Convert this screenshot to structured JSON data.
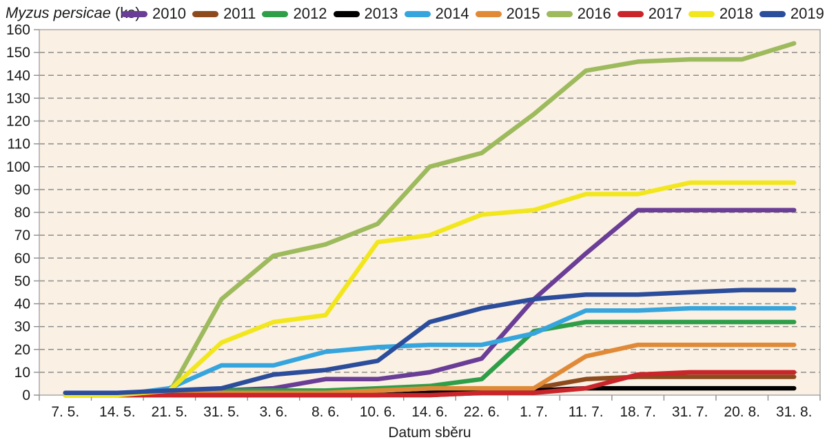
{
  "title": {
    "italic": "Myzus persicae",
    "suffix": " (ks)"
  },
  "chart_data": {
    "type": "line",
    "title": "Myzus persicae (ks)",
    "xlabel": "Datum sběru",
    "ylabel": "",
    "ylim": [
      0,
      160
    ],
    "ytick_step": 10,
    "grid": "horizontal-dashed",
    "legend_position": "top",
    "plot_bg_color": "#faf0e3",
    "grid_color": "#8c8c8c",
    "axis_color": "#a8a8a8",
    "categories": [
      "7. 5.",
      "14. 5.",
      "21. 5.",
      "31. 5.",
      "3. 6.",
      "8. 6.",
      "10. 6.",
      "14. 6.",
      "22. 6.",
      "1. 7.",
      "11. 7.",
      "18. 7.",
      "31. 7.",
      "20. 8.",
      "31. 8."
    ],
    "series": [
      {
        "name": "2010",
        "color": "#6a3d96",
        "values": [
          1,
          1,
          1,
          2,
          3,
          7,
          7,
          10,
          16,
          42,
          62,
          81,
          81,
          81,
          81
        ]
      },
      {
        "name": "2011",
        "color": "#8d4a1d",
        "values": [
          0,
          0,
          0,
          0,
          0,
          0,
          0,
          0,
          1,
          3,
          7,
          8,
          8,
          8,
          8
        ]
      },
      {
        "name": "2012",
        "color": "#2f9e49",
        "values": [
          0,
          0,
          1,
          2,
          2,
          2,
          3,
          4,
          7,
          28,
          32,
          32,
          32,
          32,
          32
        ]
      },
      {
        "name": "2013",
        "color": "#000000",
        "values": [
          0,
          0,
          0,
          0,
          0,
          0,
          0,
          1,
          2,
          2,
          3,
          3,
          3,
          3,
          3
        ]
      },
      {
        "name": "2014",
        "color": "#36a5dd",
        "values": [
          0,
          0,
          3,
          13,
          13,
          19,
          21,
          22,
          22,
          27,
          37,
          37,
          38,
          38,
          38
        ]
      },
      {
        "name": "2015",
        "color": "#e08a38",
        "values": [
          0,
          0,
          0,
          1,
          1,
          1,
          2,
          3,
          3,
          3,
          17,
          22,
          22,
          22,
          22
        ]
      },
      {
        "name": "2016",
        "color": "#9dba5d",
        "values": [
          0,
          0,
          1,
          42,
          61,
          66,
          75,
          100,
          106,
          123,
          142,
          146,
          147,
          147,
          154
        ]
      },
      {
        "name": "2017",
        "color": "#c9252b",
        "values": [
          0,
          0,
          0,
          0,
          0,
          0,
          0,
          0,
          1,
          1,
          3,
          9,
          10,
          10,
          10
        ]
      },
      {
        "name": "2018",
        "color": "#f2e71e",
        "values": [
          0,
          0,
          2,
          23,
          32,
          35,
          67,
          70,
          79,
          81,
          88,
          88,
          93,
          93,
          93
        ]
      },
      {
        "name": "2019",
        "color": "#2c4d9b",
        "values": [
          1,
          1,
          2,
          3,
          9,
          11,
          15,
          32,
          38,
          42,
          44,
          44,
          45,
          46,
          46
        ]
      }
    ]
  }
}
